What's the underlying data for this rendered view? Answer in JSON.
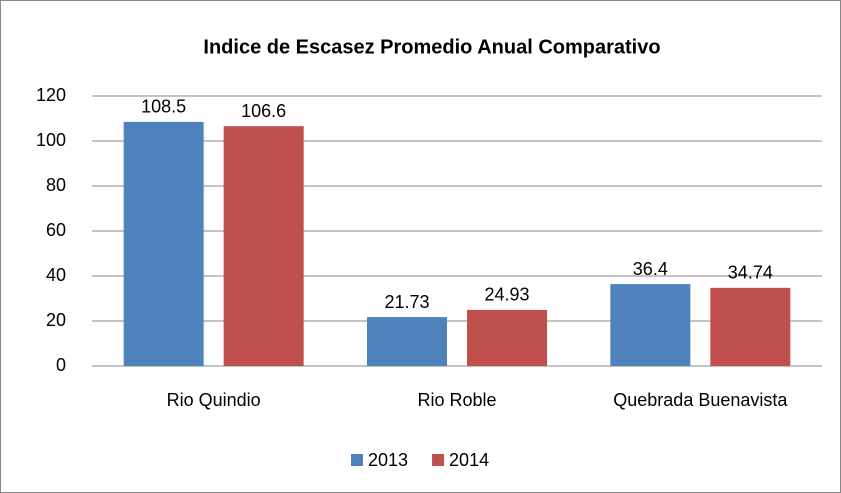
{
  "chart_data": {
    "type": "bar",
    "title": "Indice de Escasez Promedio Anual Comparativo",
    "categories": [
      "Rio Quindio",
      "Rio Roble",
      "Quebrada Buenavista"
    ],
    "series": [
      {
        "name": "2013",
        "color": "#4f81bd",
        "values": [
          108.5,
          21.73,
          36.4
        ]
      },
      {
        "name": "2014",
        "color": "#c0504d",
        "values": [
          106.6,
          24.93,
          34.74
        ]
      }
    ],
    "ylim": [
      0,
      120
    ],
    "yticks": [
      0,
      20,
      40,
      60,
      80,
      100,
      120
    ],
    "grid": true,
    "legend": "bottom"
  }
}
